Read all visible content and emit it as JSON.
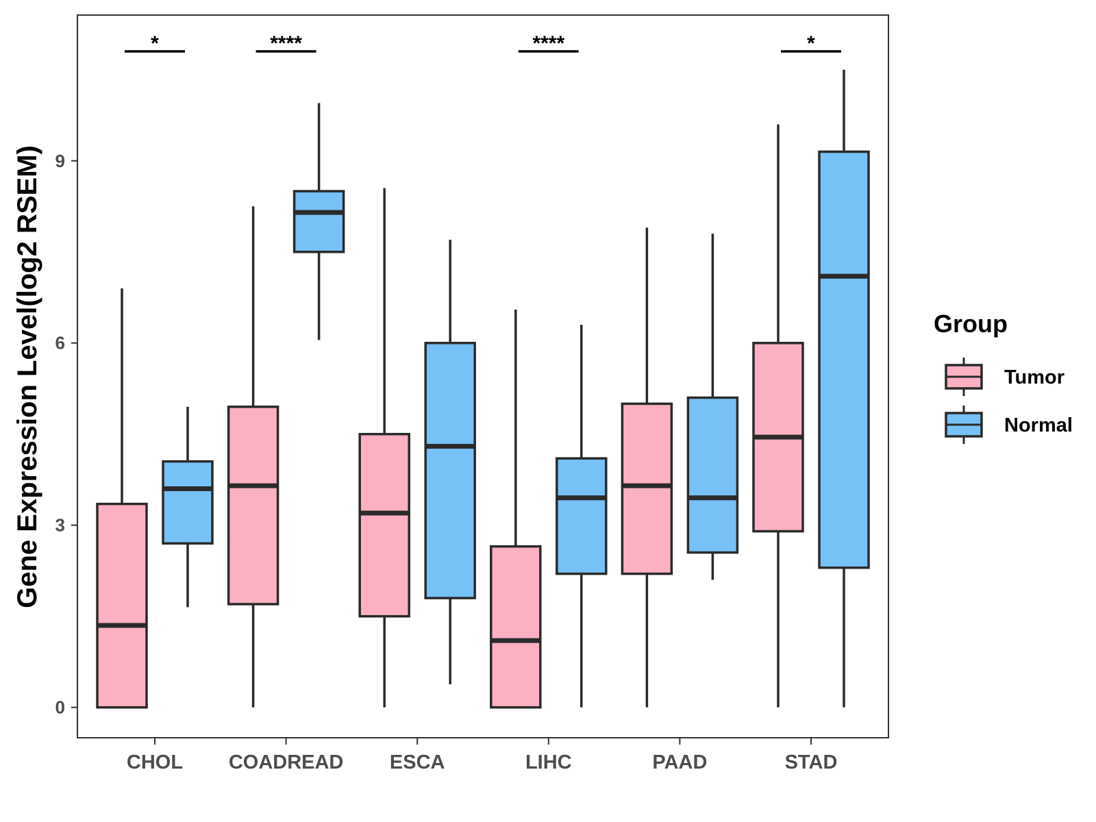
{
  "chart_data": {
    "type": "boxplot",
    "title": "",
    "xlabel": "",
    "ylabel": "Gene Expression Level(log2 RSEM)",
    "ylim": [
      -0.5,
      11.4
    ],
    "yticks": [
      0,
      3,
      6,
      9
    ],
    "ytick_labels": [
      "0",
      "3",
      "6",
      "9"
    ],
    "grid": false,
    "legend_position": "right",
    "legend_title": "Group",
    "categories": [
      "CHOL",
      "COADREAD",
      "ESCA",
      "LIHC",
      "PAAD",
      "STAD"
    ],
    "series": [
      {
        "name": "Tumor",
        "color": "#fbb1c2",
        "boxes": [
          {
            "whisker_low": 0,
            "q1": 0,
            "median": 1.35,
            "q3": 3.35,
            "whisker_high": 6.9
          },
          {
            "whisker_low": 0,
            "q1": 1.7,
            "median": 3.65,
            "q3": 4.95,
            "whisker_high": 8.25
          },
          {
            "whisker_low": 0,
            "q1": 1.5,
            "median": 3.2,
            "q3": 4.5,
            "whisker_high": 8.55
          },
          {
            "whisker_low": 0,
            "q1": 0,
            "median": 1.1,
            "q3": 2.65,
            "whisker_high": 6.55
          },
          {
            "whisker_low": 0,
            "q1": 2.2,
            "median": 3.65,
            "q3": 5.0,
            "whisker_high": 7.9
          },
          {
            "whisker_low": 0,
            "q1": 2.9,
            "median": 4.45,
            "q3": 6.0,
            "whisker_high": 9.6
          }
        ]
      },
      {
        "name": "Normal",
        "color": "#76c1f6",
        "boxes": [
          {
            "whisker_low": 1.65,
            "q1": 2.7,
            "median": 3.6,
            "q3": 4.05,
            "whisker_high": 4.95
          },
          {
            "whisker_low": 6.05,
            "q1": 7.5,
            "median": 8.15,
            "q3": 8.5,
            "whisker_high": 9.95
          },
          {
            "whisker_low": 0.38,
            "q1": 1.8,
            "median": 4.3,
            "q3": 6.0,
            "whisker_high": 7.7
          },
          {
            "whisker_low": 0,
            "q1": 2.2,
            "median": 3.45,
            "q3": 4.1,
            "whisker_high": 6.3
          },
          {
            "whisker_low": 2.1,
            "q1": 2.55,
            "median": 3.45,
            "q3": 5.1,
            "whisker_high": 7.8
          },
          {
            "whisker_low": 0,
            "q1": 2.3,
            "median": 7.1,
            "q3": 9.15,
            "whisker_high": 10.5
          }
        ]
      }
    ],
    "significance": [
      {
        "category": "CHOL",
        "label": "*"
      },
      {
        "category": "COADREAD",
        "label": "****"
      },
      {
        "category": "LIHC",
        "label": "****"
      },
      {
        "category": "STAD",
        "label": "*"
      }
    ]
  }
}
